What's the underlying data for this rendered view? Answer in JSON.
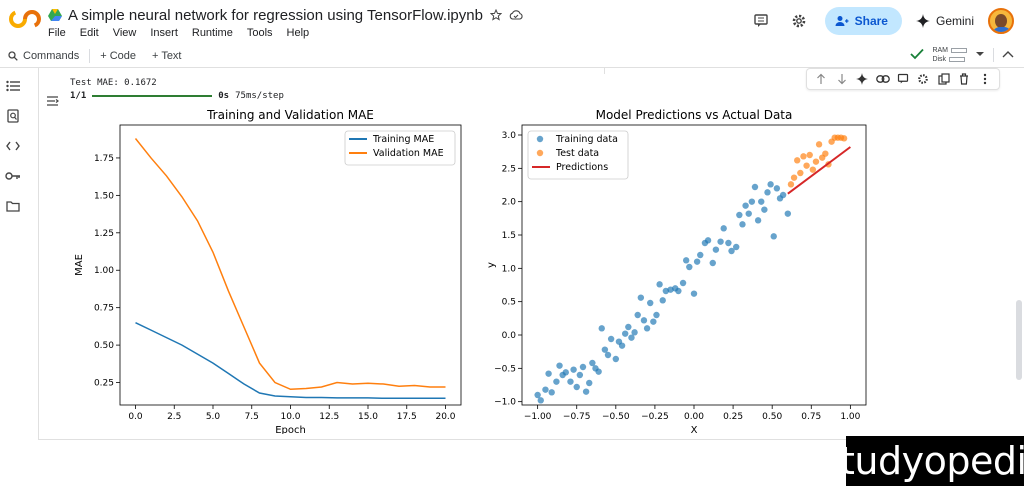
{
  "header": {
    "notebook_title": "A simple neural network for regression using TensorFlow.ipynb",
    "menu": [
      "File",
      "Edit",
      "View",
      "Insert",
      "Runtime",
      "Tools",
      "Help"
    ],
    "share_label": "Share",
    "gemini_label": "Gemini"
  },
  "toolbar": {
    "commands_label": "Commands",
    "code_label": "+ Code",
    "text_label": "+ Text",
    "ram_label": "RAM",
    "disk_label": "Disk"
  },
  "output": {
    "test_mae": "Test MAE: 0.1672",
    "progress_step": "1/1",
    "progress_time": "0s",
    "progress_rate": "75ms/step"
  },
  "chart_data": [
    {
      "type": "line",
      "title": "Training and Validation MAE",
      "xlabel": "Epoch",
      "ylabel": "MAE",
      "xlim": [
        -1,
        21
      ],
      "ylim": [
        0.1,
        1.97
      ],
      "x_ticks": [
        "0.0",
        "2.5",
        "5.0",
        "7.5",
        "10.0",
        "12.5",
        "15.0",
        "17.5",
        "20.0"
      ],
      "y_ticks": [
        "0.25",
        "0.50",
        "0.75",
        "1.00",
        "1.25",
        "1.50",
        "1.75"
      ],
      "legend": "top-right",
      "x": [
        0,
        1,
        2,
        3,
        4,
        5,
        6,
        7,
        8,
        9,
        10,
        11,
        12,
        13,
        14,
        15,
        16,
        17,
        18,
        19,
        20
      ],
      "series": [
        {
          "name": "Training MAE",
          "color": "#1f77b4",
          "values": [
            0.65,
            0.6,
            0.55,
            0.5,
            0.44,
            0.38,
            0.31,
            0.24,
            0.18,
            0.16,
            0.155,
            0.15,
            0.15,
            0.148,
            0.148,
            0.148,
            0.145,
            0.145,
            0.145,
            0.145,
            0.145
          ]
        },
        {
          "name": "Validation MAE",
          "color": "#ff7f0e",
          "values": [
            1.88,
            1.75,
            1.63,
            1.49,
            1.33,
            1.12,
            0.86,
            0.62,
            0.38,
            0.25,
            0.205,
            0.21,
            0.22,
            0.25,
            0.24,
            0.245,
            0.24,
            0.225,
            0.23,
            0.22,
            0.22
          ]
        }
      ]
    },
    {
      "type": "scatter",
      "title": "Model Predictions vs Actual Data",
      "xlabel": "X",
      "ylabel": "y",
      "xlim": [
        -1.1,
        1.1
      ],
      "ylim": [
        -1.05,
        3.15
      ],
      "x_ticks": [
        "−1.00",
        "−0.75",
        "−0.50",
        "−0.25",
        "0.00",
        "0.25",
        "0.50",
        "0.75",
        "1.00"
      ],
      "y_ticks": [
        "−1.0",
        "−0.5",
        "0.0",
        "0.5",
        "1.0",
        "1.5",
        "2.0",
        "2.5",
        "3.0"
      ],
      "legend": "top-left",
      "series": [
        {
          "name": "Training data",
          "color": "#1f77b4",
          "points": [
            [
              -1.0,
              -0.9
            ],
            [
              -0.98,
              -0.98
            ],
            [
              -0.95,
              -0.82
            ],
            [
              -0.93,
              -0.58
            ],
            [
              -0.91,
              -0.86
            ],
            [
              -0.88,
              -0.7
            ],
            [
              -0.86,
              -0.46
            ],
            [
              -0.84,
              -0.6
            ],
            [
              -0.82,
              -0.56
            ],
            [
              -0.79,
              -0.7
            ],
            [
              -0.77,
              -0.52
            ],
            [
              -0.75,
              -0.78
            ],
            [
              -0.73,
              -0.6
            ],
            [
              -0.71,
              -0.48
            ],
            [
              -0.69,
              -0.85
            ],
            [
              -0.67,
              -0.72
            ],
            [
              -0.65,
              -0.42
            ],
            [
              -0.63,
              -0.5
            ],
            [
              -0.61,
              -0.55
            ],
            [
              -0.59,
              0.1
            ],
            [
              -0.57,
              -0.22
            ],
            [
              -0.55,
              -0.3
            ],
            [
              -0.53,
              -0.06
            ],
            [
              -0.5,
              -0.36
            ],
            [
              -0.48,
              -0.1
            ],
            [
              -0.46,
              -0.16
            ],
            [
              -0.44,
              0.02
            ],
            [
              -0.42,
              0.12
            ],
            [
              -0.4,
              -0.04
            ],
            [
              -0.38,
              0.04
            ],
            [
              -0.36,
              0.3
            ],
            [
              -0.34,
              0.56
            ],
            [
              -0.32,
              0.22
            ],
            [
              -0.3,
              0.1
            ],
            [
              -0.28,
              0.48
            ],
            [
              -0.26,
              0.2
            ],
            [
              -0.24,
              0.3
            ],
            [
              -0.22,
              0.76
            ],
            [
              -0.2,
              0.52
            ],
            [
              -0.18,
              0.66
            ],
            [
              -0.15,
              0.68
            ],
            [
              -0.12,
              0.7
            ],
            [
              -0.1,
              0.66
            ],
            [
              -0.07,
              0.78
            ],
            [
              -0.05,
              1.12
            ],
            [
              -0.03,
              1.02
            ],
            [
              0.0,
              0.62
            ],
            [
              0.02,
              1.1
            ],
            [
              0.04,
              1.2
            ],
            [
              0.07,
              1.38
            ],
            [
              0.09,
              1.42
            ],
            [
              0.12,
              1.08
            ],
            [
              0.14,
              1.28
            ],
            [
              0.17,
              1.4
            ],
            [
              0.19,
              1.6
            ],
            [
              0.22,
              1.38
            ],
            [
              0.24,
              1.26
            ],
            [
              0.27,
              1.32
            ],
            [
              0.29,
              1.8
            ],
            [
              0.31,
              1.66
            ],
            [
              0.33,
              1.94
            ],
            [
              0.35,
              1.82
            ],
            [
              0.37,
              2.0
            ],
            [
              0.39,
              2.22
            ],
            [
              0.41,
              1.72
            ],
            [
              0.43,
              2.0
            ],
            [
              0.45,
              1.88
            ],
            [
              0.47,
              2.14
            ],
            [
              0.49,
              2.26
            ],
            [
              0.51,
              1.48
            ],
            [
              0.53,
              2.2
            ],
            [
              0.55,
              2.05
            ],
            [
              0.57,
              2.1
            ],
            [
              0.6,
              1.82
            ]
          ]
        },
        {
          "name": "Test data",
          "color": "#ff7f0e",
          "points": [
            [
              0.62,
              2.26
            ],
            [
              0.64,
              2.36
            ],
            [
              0.66,
              2.62
            ],
            [
              0.68,
              2.43
            ],
            [
              0.7,
              2.68
            ],
            [
              0.72,
              2.54
            ],
            [
              0.74,
              2.7
            ],
            [
              0.76,
              2.48
            ],
            [
              0.78,
              2.6
            ],
            [
              0.8,
              2.86
            ],
            [
              0.82,
              2.66
            ],
            [
              0.84,
              2.72
            ],
            [
              0.86,
              2.56
            ],
            [
              0.88,
              2.9
            ],
            [
              0.9,
              2.96
            ],
            [
              0.92,
              2.96
            ],
            [
              0.94,
              2.96
            ],
            [
              0.96,
              2.95
            ]
          ]
        },
        {
          "name": "Predictions",
          "color": "#d62728",
          "line": [
            [
              0.6,
              2.12
            ],
            [
              1.0,
              2.82
            ]
          ]
        }
      ]
    }
  ],
  "watermark": "studyopedia"
}
